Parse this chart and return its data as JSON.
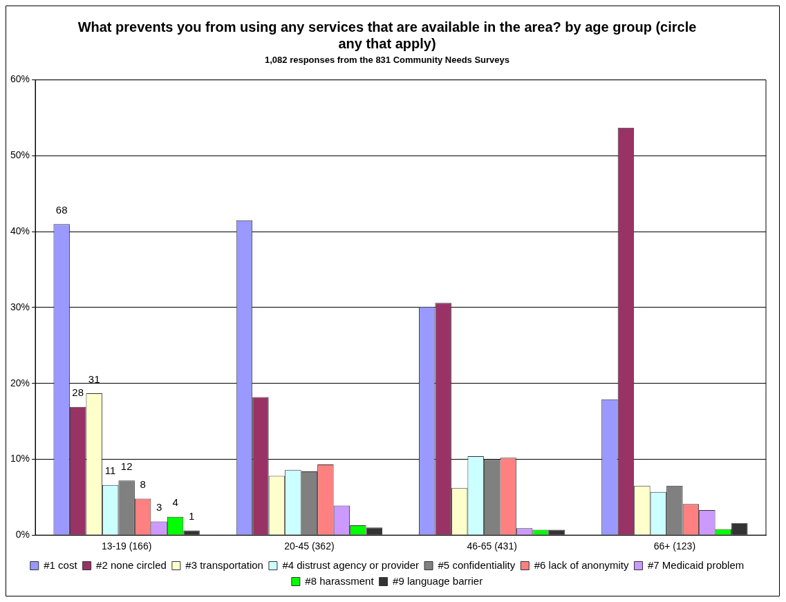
{
  "chart_data": {
    "type": "bar",
    "title": "What prevents you from using any services that are available in the area? by age group (circle any that apply)",
    "subtitle": "1,082 responses from the 831 Community Needs Surveys",
    "categories": [
      "13-19 (166)",
      "20-45 (362)",
      "46-65 (431)",
      "66+ (123)"
    ],
    "series": [
      {
        "name": "#1 cost",
        "color": "#9999ff",
        "values": [
          41.0,
          41.5,
          30.1,
          17.9
        ]
      },
      {
        "name": "#2 none circled",
        "color": "#993366",
        "values": [
          16.9,
          18.2,
          30.6,
          53.7
        ]
      },
      {
        "name": "#3 transportation",
        "color": "#ffffcc",
        "values": [
          18.7,
          7.8,
          6.2,
          6.5
        ]
      },
      {
        "name": "#4 distrust agency or provider",
        "color": "#ccffff",
        "values": [
          6.6,
          8.6,
          10.4,
          5.7
        ]
      },
      {
        "name": "#5 confidentiality",
        "color": "#808080",
        "values": [
          7.2,
          8.4,
          10.0,
          6.5
        ]
      },
      {
        "name": "#6 lack of anonymity",
        "color": "#ff8080",
        "values": [
          4.8,
          9.3,
          10.2,
          4.1
        ]
      },
      {
        "name": "#7 Medicaid problem",
        "color": "#cc99ff",
        "values": [
          1.8,
          3.9,
          0.9,
          3.3
        ]
      },
      {
        "name": "#8 harassment",
        "color": "#00ff00",
        "values": [
          2.4,
          1.3,
          0.7,
          0.8
        ]
      },
      {
        "name": "#9 language barrier",
        "color": "#333333",
        "values": [
          0.6,
          1.0,
          0.7,
          1.6
        ]
      }
    ],
    "ylim": [
      0,
      60
    ],
    "yticks": [
      {
        "value": 0,
        "label": "0%"
      },
      {
        "value": 10,
        "label": "10%"
      },
      {
        "value": 20,
        "label": "20%"
      },
      {
        "value": 30,
        "label": "30%"
      },
      {
        "value": 40,
        "label": "40%"
      },
      {
        "value": 50,
        "label": "50%"
      },
      {
        "value": 60,
        "label": "60%"
      }
    ],
    "annotations": [
      "68",
      "28",
      "31",
      "11",
      "12",
      "8",
      "3",
      "4",
      "1"
    ],
    "grid": "y",
    "legend": "bottom"
  }
}
